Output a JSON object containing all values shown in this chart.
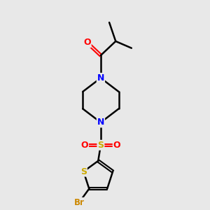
{
  "bg_color": "#e8e8e8",
  "atom_colors": {
    "C": "#000000",
    "N": "#0000ff",
    "O": "#ff0000",
    "S": "#ccaa00",
    "Br": "#cc8800"
  },
  "bond_color": "#000000",
  "bond_width": 1.8,
  "font_size_atom": 9,
  "font_size_br": 8.5,
  "xlim": [
    -1.0,
    1.2
  ],
  "ylim": [
    -2.5,
    2.3
  ]
}
